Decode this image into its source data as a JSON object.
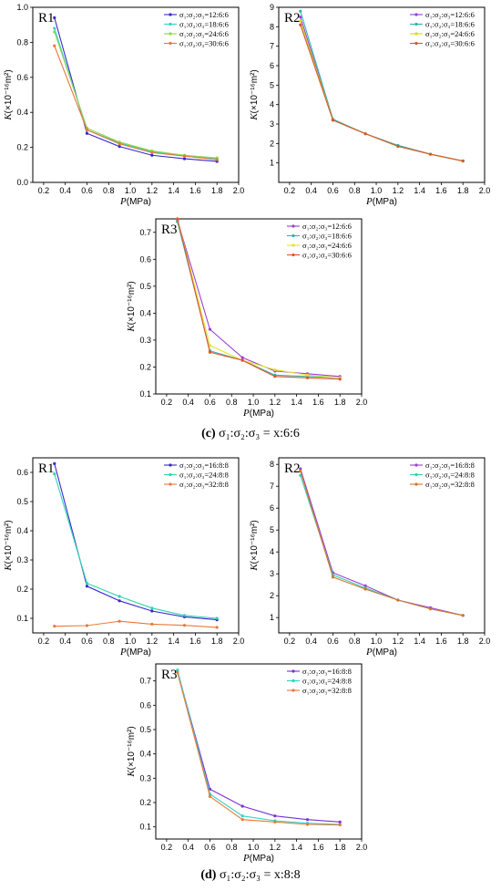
{
  "chart_data": [
    {
      "id": "c-R1",
      "type": "line",
      "label": "R1",
      "xlabel": "P",
      "xunit": "(MPa)",
      "ylabel": "K",
      "yunit": "(×10⁻¹⁶m²)",
      "xlim": [
        0.1,
        2.0
      ],
      "ylim": [
        0.0,
        1.0
      ],
      "xticks": [
        0.2,
        0.4,
        0.6,
        0.8,
        1.0,
        1.2,
        1.4,
        1.6,
        1.8,
        2.0
      ],
      "yticks": [
        0.0,
        0.2,
        0.4,
        0.6,
        0.8,
        1.0
      ],
      "legend": "top-right",
      "x": [
        0.3,
        0.6,
        0.9,
        1.2,
        1.5,
        1.8
      ],
      "series": [
        {
          "name": "σ₁:σ₂:σ₃=12:6:6",
          "color": "#3b28cc",
          "values": [
            0.94,
            0.28,
            0.205,
            0.155,
            0.135,
            0.12
          ]
        },
        {
          "name": "σ₁:σ₂:σ₃=18:6:6",
          "color": "#2fd3c4",
          "values": [
            0.88,
            0.3,
            0.225,
            0.175,
            0.15,
            0.135
          ]
        },
        {
          "name": "σ₁:σ₂:σ₃=24:6:6",
          "color": "#8fd64a",
          "values": [
            0.86,
            0.31,
            0.23,
            0.18,
            0.155,
            0.14
          ]
        },
        {
          "name": "σ₁:σ₂:σ₃=30:6:6",
          "color": "#e8793a",
          "values": [
            0.78,
            0.3,
            0.22,
            0.17,
            0.15,
            0.13
          ]
        }
      ]
    },
    {
      "id": "c-R2",
      "type": "line",
      "label": "R2",
      "xlabel": "P",
      "xunit": "(MPa)",
      "ylabel": "K",
      "yunit": "(×10⁻¹⁶m²)",
      "xlim": [
        0.1,
        2.0
      ],
      "ylim": [
        0,
        9
      ],
      "xticks": [
        0.2,
        0.4,
        0.6,
        0.8,
        1.0,
        1.2,
        1.4,
        1.6,
        1.8,
        2.0
      ],
      "yticks": [
        1,
        2,
        3,
        4,
        5,
        6,
        7,
        8,
        9
      ],
      "legend": "top-right",
      "x": [
        0.3,
        0.6,
        0.9,
        1.2,
        1.5,
        1.8
      ],
      "series": [
        {
          "name": "σ₁:σ₂:σ₃=12:6:6",
          "color": "#9b3fd4",
          "values": [
            8.5,
            3.2,
            2.5,
            1.9,
            1.45,
            1.1
          ]
        },
        {
          "name": "σ₁:σ₂:σ₃=18:6:6",
          "color": "#2fb3b3",
          "values": [
            8.8,
            3.25,
            2.5,
            1.9,
            1.45,
            1.1
          ]
        },
        {
          "name": "σ₁:σ₂:σ₃=24:6:6",
          "color": "#d8d62a",
          "values": [
            8.3,
            3.2,
            2.5,
            1.85,
            1.45,
            1.1
          ]
        },
        {
          "name": "σ₁:σ₂:σ₃=30:6:6",
          "color": "#d35a2a",
          "values": [
            8.1,
            3.2,
            2.5,
            1.85,
            1.45,
            1.1
          ]
        }
      ]
    },
    {
      "id": "c-R3",
      "type": "line",
      "label": "R3",
      "xlabel": "P",
      "xunit": "(MPa)",
      "ylabel": "K",
      "yunit": "(×10⁻¹⁶m²)",
      "xlim": [
        0.1,
        2.0
      ],
      "ylim": [
        0.1,
        0.75
      ],
      "xticks": [
        0.2,
        0.4,
        0.6,
        0.8,
        1.0,
        1.2,
        1.4,
        1.6,
        1.8,
        2.0
      ],
      "yticks": [
        0.1,
        0.2,
        0.3,
        0.4,
        0.5,
        0.6,
        0.7
      ],
      "legend": "top-right",
      "x": [
        0.3,
        0.6,
        0.9,
        1.2,
        1.5,
        1.8
      ],
      "series": [
        {
          "name": "σ₁:σ₂:σ₃=12:6:6",
          "color": "#9b3fd4",
          "values": [
            0.745,
            0.34,
            0.235,
            0.185,
            0.175,
            0.165
          ]
        },
        {
          "name": "σ₁:σ₂:σ₃=18:6:6",
          "color": "#2fb3b3",
          "values": [
            0.74,
            0.26,
            0.225,
            0.17,
            0.165,
            0.16
          ]
        },
        {
          "name": "σ₁:σ₂:σ₃=24:6:6",
          "color": "#e6e32a",
          "values": [
            0.75,
            0.28,
            0.225,
            0.19,
            0.17,
            0.16
          ]
        },
        {
          "name": "σ₁:σ₂:σ₃=30:6:6",
          "color": "#e0562a",
          "values": [
            0.75,
            0.255,
            0.225,
            0.165,
            0.16,
            0.155
          ]
        }
      ]
    },
    {
      "id": "d-R1",
      "type": "line",
      "label": "R1",
      "xlabel": "P",
      "xunit": "(MPa)",
      "ylabel": "K",
      "yunit": "(×10⁻¹⁶m²)",
      "xlim": [
        0.1,
        2.0
      ],
      "ylim": [
        0.05,
        0.65
      ],
      "xticks": [
        0.2,
        0.4,
        0.6,
        0.8,
        1.0,
        1.2,
        1.4,
        1.6,
        1.8,
        2.0
      ],
      "yticks": [
        0.1,
        0.2,
        0.3,
        0.4,
        0.5,
        0.6
      ],
      "legend": "top-right",
      "x": [
        0.3,
        0.6,
        0.9,
        1.2,
        1.5,
        1.8
      ],
      "series": [
        {
          "name": "σ₁:σ₂:σ₃=16:8:8",
          "color": "#3b28cc",
          "values": [
            0.63,
            0.21,
            0.16,
            0.125,
            0.105,
            0.095
          ]
        },
        {
          "name": "σ₁:σ₂:σ₃=24:8:8",
          "color": "#2fd3b0",
          "values": [
            0.595,
            0.22,
            0.175,
            0.135,
            0.11,
            0.1
          ]
        },
        {
          "name": "σ₁:σ₂:σ₃=32:8:8",
          "color": "#e8793a",
          "values": [
            0.073,
            0.075,
            0.09,
            0.08,
            0.076,
            0.069
          ]
        }
      ]
    },
    {
      "id": "d-R2",
      "type": "line",
      "label": "R2",
      "xlabel": "P",
      "xunit": "(MPa)",
      "ylabel": "K",
      "yunit": "(×10⁻¹⁶m²)",
      "xlim": [
        0.1,
        2.0
      ],
      "ylim": [
        0.3,
        8.3
      ],
      "xticks": [
        0.2,
        0.4,
        0.6,
        0.8,
        1.0,
        1.2,
        1.4,
        1.6,
        1.8,
        2.0
      ],
      "yticks": [
        1,
        2,
        3,
        4,
        5,
        6,
        7,
        8
      ],
      "legend": "top-right",
      "x": [
        0.3,
        0.6,
        0.9,
        1.2,
        1.5,
        1.8
      ],
      "series": [
        {
          "name": "σ₁:σ₂:σ₃=16:8:8",
          "color": "#9b3fd4",
          "values": [
            7.8,
            3.05,
            2.45,
            1.8,
            1.45,
            1.1
          ]
        },
        {
          "name": "σ₁:σ₂:σ₃=24:8:8",
          "color": "#2fd3b0",
          "values": [
            7.5,
            2.95,
            2.35,
            1.8,
            1.4,
            1.1
          ]
        },
        {
          "name": "σ₁:σ₂:σ₃=32:8:8",
          "color": "#d8732a",
          "values": [
            7.7,
            2.85,
            2.3,
            1.8,
            1.4,
            1.1
          ]
        }
      ]
    },
    {
      "id": "d-R3",
      "type": "line",
      "label": "R3",
      "xlabel": "P",
      "xunit": "(MPa)",
      "ylabel": "K",
      "yunit": "(×10⁻¹⁶m²)",
      "xlim": [
        0.1,
        2.0
      ],
      "ylim": [
        0.05,
        0.77
      ],
      "xticks": [
        0.2,
        0.4,
        0.6,
        0.8,
        1.0,
        1.2,
        1.4,
        1.6,
        1.8,
        2.0
      ],
      "yticks": [
        0.1,
        0.2,
        0.3,
        0.4,
        0.5,
        0.6,
        0.7
      ],
      "legend": "top-right",
      "x": [
        0.3,
        0.6,
        0.9,
        1.2,
        1.5,
        1.8
      ],
      "series": [
        {
          "name": "σ₁:σ₂:σ₃=16:8:8",
          "color": "#7a2fd4",
          "values": [
            0.74,
            0.255,
            0.185,
            0.145,
            0.13,
            0.12
          ]
        },
        {
          "name": "σ₁:σ₂:σ₃=24:8:8",
          "color": "#2fd3c4",
          "values": [
            0.745,
            0.235,
            0.145,
            0.125,
            0.115,
            0.11
          ]
        },
        {
          "name": "σ₁:σ₂:σ₃=32:8:8",
          "color": "#e8793a",
          "values": [
            0.735,
            0.225,
            0.13,
            0.12,
            0.11,
            0.108
          ]
        }
      ]
    }
  ],
  "captions": {
    "c": {
      "letter": "(c)",
      "text": "σ₁:σ₂:σ₃ = x:6:6"
    },
    "d": {
      "letter": "(d)",
      "text": "σ₁:σ₂:σ₃ = x:8:8"
    }
  }
}
